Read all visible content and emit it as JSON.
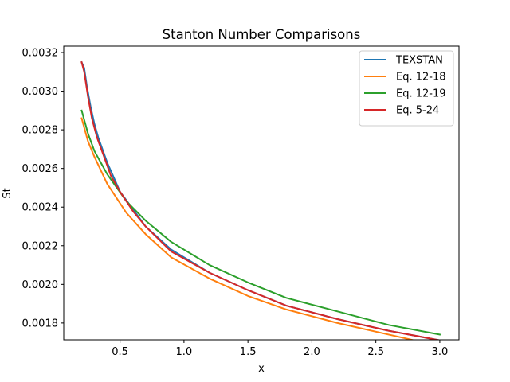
{
  "chart_data": {
    "type": "line",
    "title": "Stanton Number Comparisons",
    "xlabel": "x",
    "ylabel": "St",
    "xlim": [
      0.06,
      3.15
    ],
    "ylim": [
      0.001713,
      0.003233
    ],
    "xticks": [
      0.5,
      1.0,
      1.5,
      2.0,
      2.5,
      3.0
    ],
    "xtick_labels": [
      "0.5",
      "1.0",
      "1.5",
      "2.0",
      "2.5",
      "3.0"
    ],
    "yticks": [
      0.0018,
      0.002,
      0.0022,
      0.0024,
      0.0026,
      0.0028,
      0.003,
      0.0032
    ],
    "ytick_labels": [
      "0.0018",
      "0.0020",
      "0.0022",
      "0.0024",
      "0.0026",
      "0.0028",
      "0.0030",
      "0.0032"
    ],
    "grid": false,
    "legend_position": "top-right",
    "series": [
      {
        "name": "TEXSTAN",
        "color": "#1f77b4",
        "x": [
          0.2,
          0.22,
          0.24,
          0.27,
          0.3,
          0.33,
          0.4,
          0.5,
          0.7,
          0.9,
          1.2,
          1.5,
          1.8,
          2.2,
          2.6,
          3.0
        ],
        "y": [
          0.00315,
          0.00312,
          0.00303,
          0.00292,
          0.00283,
          0.00276,
          0.00263,
          0.00248,
          0.0023,
          0.00218,
          0.00206,
          0.00197,
          0.00189,
          0.00182,
          0.00176,
          0.00171
        ]
      },
      {
        "name": "Eq. 12-18",
        "color": "#ff7f0e",
        "x": [
          0.2,
          0.25,
          0.3,
          0.4,
          0.55,
          0.7,
          0.9,
          1.2,
          1.5,
          1.8,
          2.2,
          2.6,
          3.0
        ],
        "y": [
          0.00286,
          0.00274,
          0.00266,
          0.00252,
          0.00237,
          0.00226,
          0.00214,
          0.00203,
          0.00194,
          0.00187,
          0.0018,
          0.00174,
          0.00168
        ]
      },
      {
        "name": "Eq. 12-19",
        "color": "#2ca02c",
        "x": [
          0.2,
          0.25,
          0.3,
          0.4,
          0.55,
          0.7,
          0.9,
          1.2,
          1.5,
          1.8,
          2.2,
          2.6,
          3.0
        ],
        "y": [
          0.0029,
          0.00278,
          0.00269,
          0.00257,
          0.00243,
          0.00233,
          0.00222,
          0.0021,
          0.00201,
          0.00193,
          0.00186,
          0.00179,
          0.00174
        ]
      },
      {
        "name": "Eq. 5-24",
        "color": "#d62728",
        "x": [
          0.2,
          0.22,
          0.25,
          0.28,
          0.32,
          0.37,
          0.43,
          0.5,
          0.6,
          0.7,
          0.9,
          1.2,
          1.5,
          1.8,
          2.2,
          2.6,
          3.0
        ],
        "y": [
          0.00315,
          0.0031,
          0.00297,
          0.00286,
          0.00276,
          0.00267,
          0.00256,
          0.00248,
          0.00238,
          0.0023,
          0.00217,
          0.00206,
          0.00197,
          0.00189,
          0.00182,
          0.00176,
          0.00171
        ]
      }
    ]
  }
}
